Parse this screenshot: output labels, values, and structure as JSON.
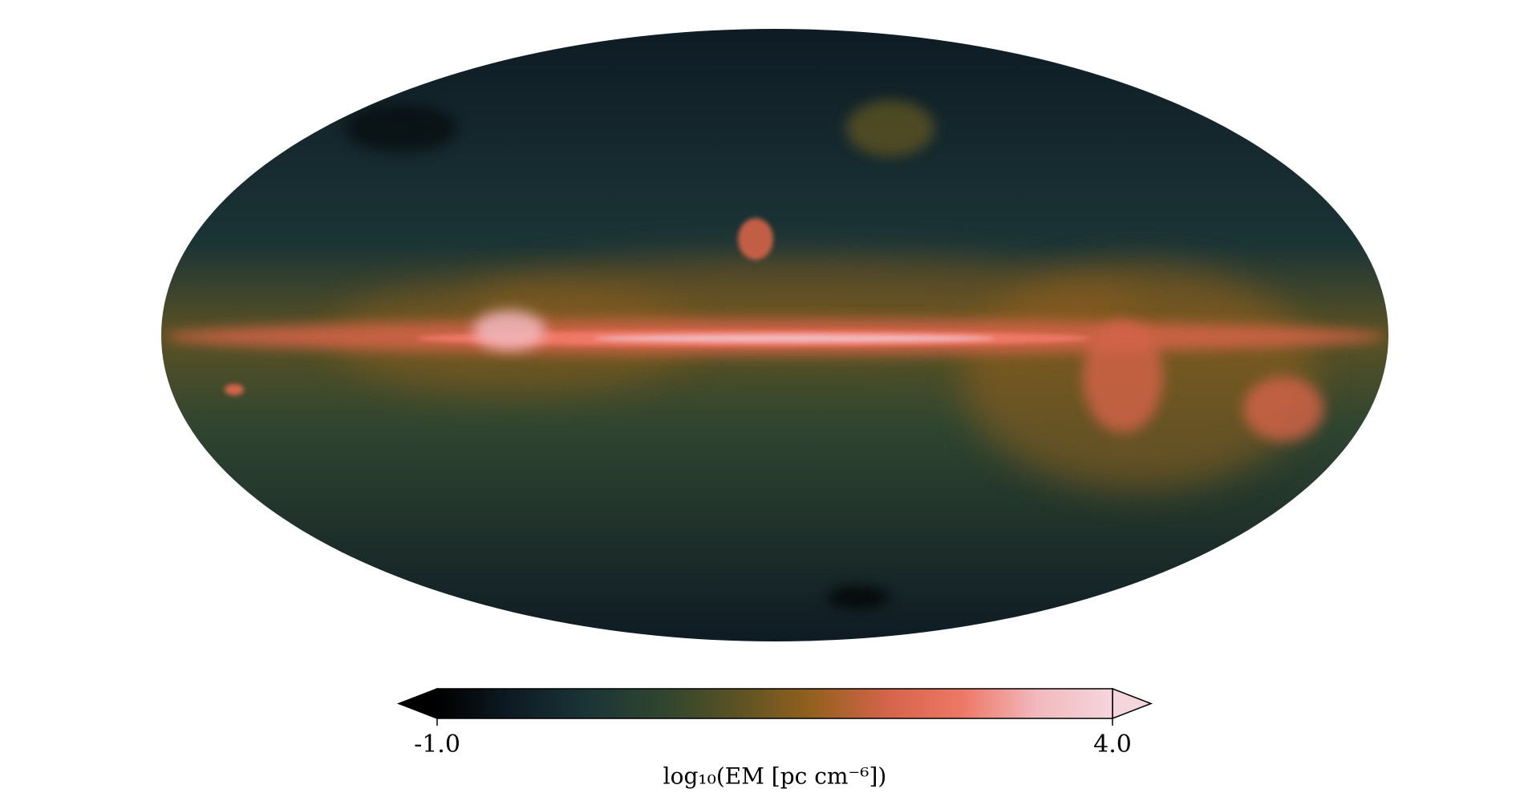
{
  "chart_data": {
    "type": "map",
    "projection": "mollweide",
    "colormap": [
      "#000000",
      "#0e1b24",
      "#1b3436",
      "#2f4530",
      "#5b5224",
      "#94601e",
      "#d4644a",
      "#ee7866",
      "#f2b9be",
      "#f4d6dc"
    ],
    "colorbar": {
      "vlim": [
        -1,
        4
      ],
      "extend": "both",
      "ticks": [
        {
          "value": -1,
          "label": "-1.0"
        },
        {
          "value": 4,
          "label": "4.0"
        }
      ],
      "label": "log₁₀(EM [pc cm⁻⁶])"
    }
  }
}
